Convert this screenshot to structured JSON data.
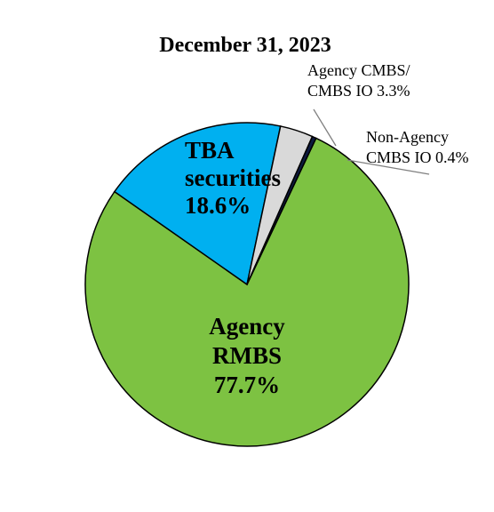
{
  "chart_data": {
    "type": "pie",
    "title": "December 31, 2023",
    "slices": [
      {
        "lines": [
          "Agency",
          "RMBS",
          "77.7%"
        ],
        "value": 77.7,
        "color": "#7dc242"
      },
      {
        "lines": [
          "TBA",
          "securities",
          "18.6%"
        ],
        "value": 18.6,
        "color": "#00b0f0"
      },
      {
        "lines": [
          "Agency CMBS/",
          "CMBS IO 3.3%"
        ],
        "value": 3.3,
        "color": "#d9d9d9"
      },
      {
        "lines": [
          "Non-Agency",
          "CMBS IO 0.4%"
        ],
        "value": 0.4,
        "color": "#0d1a40"
      }
    ]
  }
}
